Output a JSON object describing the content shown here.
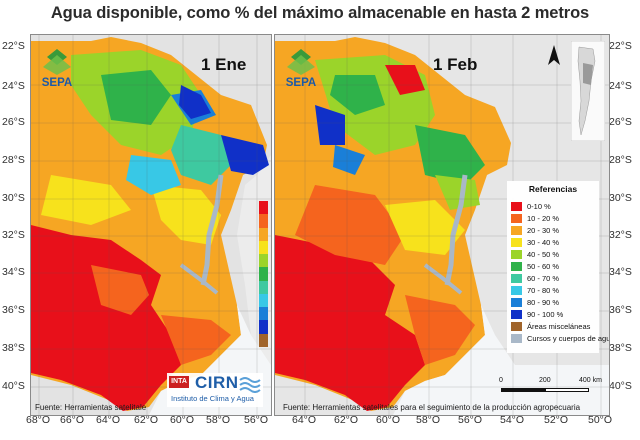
{
  "title": "Agua disponible, como % del máximo almacenable  en hasta 2 metros",
  "lat_labels": [
    "22°S",
    "24°S",
    "26°S",
    "28°S",
    "30°S",
    "32°S",
    "34°S",
    "36°S",
    "38°S",
    "40°S"
  ],
  "lon_labels": [
    "68°O",
    "66°O",
    "64°O",
    "62°O",
    "60°O",
    "58°O",
    "56°O",
    "64°O",
    "62°O",
    "60°O",
    "58°O",
    "56°O",
    "54°O",
    "52°O",
    "50°O"
  ],
  "maps": [
    {
      "date": "1 Ene",
      "logo": "SEPA",
      "source": "Fuente: Herramientas satelitale",
      "partner_logo": {
        "badge": "INTA",
        "name": "CIRN",
        "subtitle": "Instituto de Clima y Agua"
      }
    },
    {
      "date": "1 Feb",
      "logo": "SEPA",
      "source": "Fuente: Herramientas satelitales para el seguimiento de la producción agropecuaria"
    }
  ],
  "legend": {
    "title": "Referencias",
    "items": [
      {
        "label": "0-10 %",
        "color": "#e8101a"
      },
      {
        "label": "10 - 20 %",
        "color": "#f5641e"
      },
      {
        "label": "20 - 30 %",
        "color": "#f6a623"
      },
      {
        "label": "30 - 40 %",
        "color": "#f7e21c"
      },
      {
        "label": "40 - 50 %",
        "color": "#9bd42a"
      },
      {
        "label": "50 - 60 %",
        "color": "#2fb24a"
      },
      {
        "label": "60 - 70 %",
        "color": "#3ec9a0"
      },
      {
        "label": "70 - 80 %",
        "color": "#38c8e6"
      },
      {
        "label": "80 - 90 %",
        "color": "#1a7fd8"
      },
      {
        "label": "90 - 100 %",
        "color": "#1030c8"
      },
      {
        "label": "Áreas misceláneas",
        "color": "#a0642a"
      },
      {
        "label": "Cursos y cuerpos de agua",
        "color": "#a9b8c8"
      }
    ]
  },
  "scale": {
    "labels": [
      "0",
      "200",
      "400 km"
    ]
  },
  "icons": {
    "north": "north-arrow-icon",
    "locator": "argentina-locator-map"
  }
}
